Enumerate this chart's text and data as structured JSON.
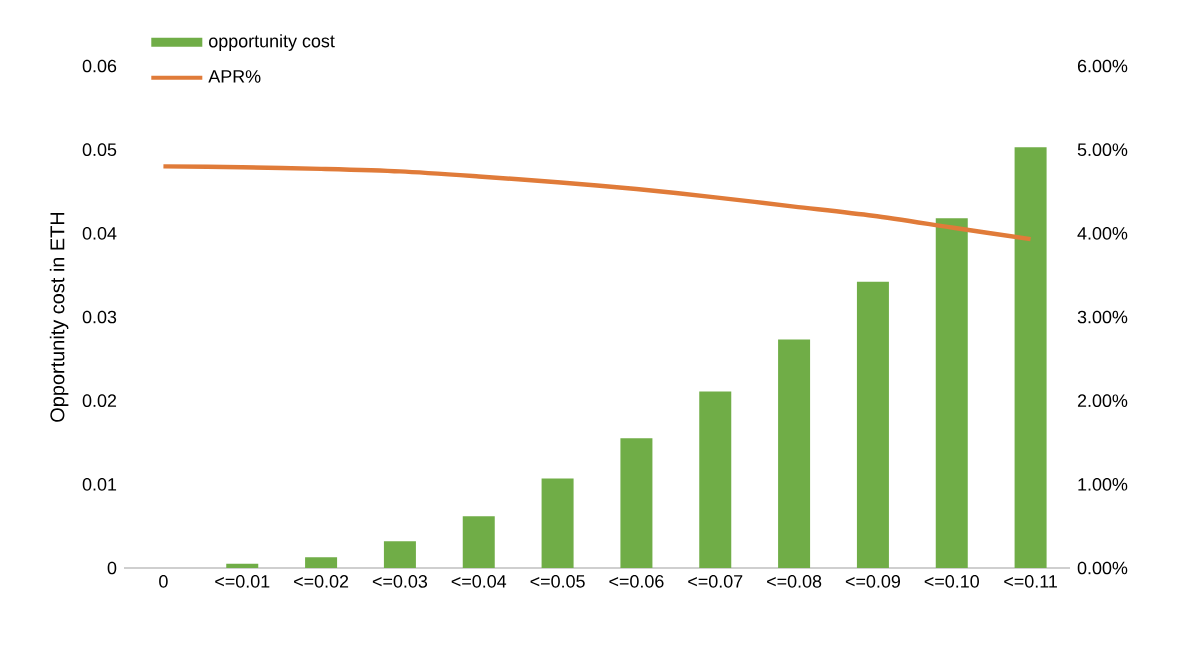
{
  "chart_data": {
    "type": "bar",
    "categories": [
      "0",
      "<=0.01",
      "<=0.02",
      "<=0.03",
      "<=0.04",
      "<=0.05",
      "<=0.06",
      "<=0.07",
      "<=0.08",
      "<=0.09",
      "<=0.10",
      "<=0.11"
    ],
    "series": [
      {
        "name": "opportunity cost",
        "color": "#70ad47",
        "values": [
          0,
          0.0005,
          0.0013,
          0.0032,
          0.0062,
          0.0107,
          0.0155,
          0.0211,
          0.0273,
          0.0342,
          0.0418,
          0.0503
        ]
      },
      {
        "name": "APR%",
        "type": "line",
        "axis": "y2",
        "color": "#e07b39",
        "values": [
          4.8,
          4.79,
          4.77,
          4.74,
          4.68,
          4.61,
          4.53,
          4.43,
          4.32,
          4.21,
          4.07,
          3.93
        ]
      }
    ],
    "ylabel": "Opportunity cost in ETH",
    "ylim": [
      0,
      0.06
    ],
    "yticks": [
      0,
      0.01,
      0.02,
      0.03,
      0.04,
      0.05,
      0.06
    ],
    "y2lim": [
      0,
      6
    ],
    "y2ticks": [
      {
        "value": 0,
        "label": "0.00%"
      },
      {
        "value": 1,
        "label": "1.00%"
      },
      {
        "value": 2,
        "label": "2.00%"
      },
      {
        "value": 3,
        "label": "3.00%"
      },
      {
        "value": 4,
        "label": "4.00%"
      },
      {
        "value": 5,
        "label": "5.00%"
      },
      {
        "value": 6,
        "label": "6.00%"
      }
    ],
    "legend": "top left"
  }
}
